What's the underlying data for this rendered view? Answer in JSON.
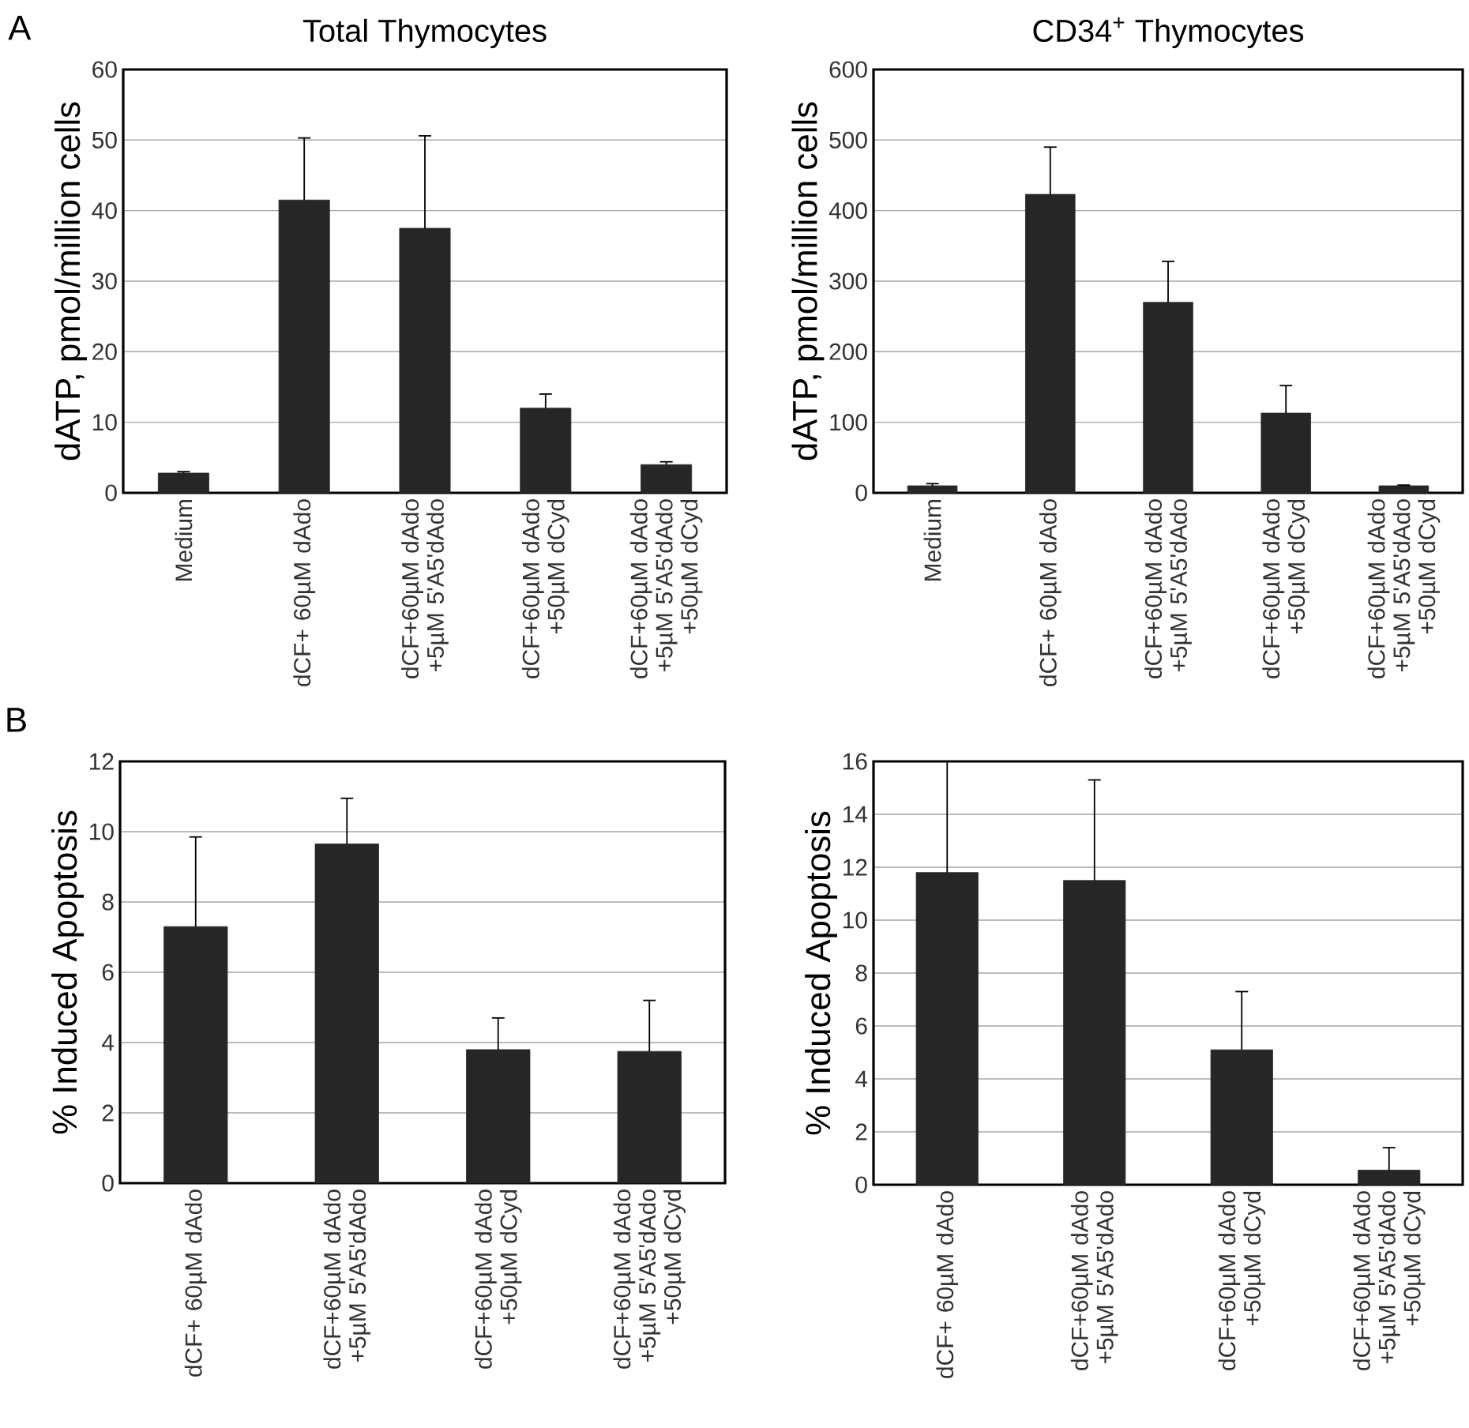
{
  "chart_data": [
    {
      "type": "bar",
      "title": "Total Thymocytes",
      "ylabel": "dATP, pmol/million cells",
      "annotations": [
        "A"
      ],
      "categories": [
        "Medium",
        "dCF+ 60µM dAdo",
        "dCF+60µM dAdo +5µM 5'A5'dAdo",
        "dCF+60µM dAdo +50µM dCyd",
        "dCF+60µM dAdo +5µM 5'A5'dAdo +50µM dCyd"
      ],
      "values": [
        2.8,
        41.5,
        37.5,
        12,
        4
      ],
      "errors": [
        0.2,
        8.8,
        13.1,
        2,
        0.4
      ],
      "color": "#262626",
      "ylim": [
        0,
        60
      ],
      "yticks": [
        0,
        10,
        20,
        30,
        40,
        50,
        60
      ],
      "grid": "y"
    },
    {
      "type": "bar",
      "title": "CD34$^{+}$ Thymocytes",
      "ylabel": "dATP, pmol/million cells",
      "categories": [
        "Medium",
        "dCF+ 60µM dAdo",
        "dCF+60µM dAdo +5µM 5'A5'dAdo",
        "dCF+60µM dAdo +50µM dCyd",
        "dCF+60µM dAdo +5µM 5'A5'dAdo +50µM dCyd"
      ],
      "values": [
        10,
        423,
        270,
        113,
        10
      ],
      "errors": [
        3,
        67,
        58,
        39,
        1
      ],
      "color": "#262626",
      "ylim": [
        0,
        600
      ],
      "yticks": [
        0,
        100,
        200,
        300,
        400,
        500,
        600
      ],
      "grid": "y"
    },
    {
      "type": "bar",
      "ylabel": "% Induced Apoptosis",
      "annotations": [
        "B"
      ],
      "categories": [
        "dCF+ 60µM dAdo",
        "dCF+60µM dAdo +5µM 5'A5'dAdo",
        "dCF+60µM dAdo +50µM dCyd",
        "dCF+60µM dAdo +5µM 5'A5'dAdo +50µM dCyd"
      ],
      "values": [
        7.3,
        9.65,
        3.8,
        3.75
      ],
      "errors": [
        2.55,
        1.3,
        0.9,
        1.45
      ],
      "color": "#262626",
      "ylim": [
        0,
        12
      ],
      "yticks": [
        0,
        2,
        4,
        6,
        8,
        10,
        12
      ],
      "grid": "y"
    },
    {
      "type": "bar",
      "ylabel": "% Induced Apoptosis",
      "categories": [
        "dCF+ 60µM dAdo",
        "dCF+60µM dAdo +5µM 5'A5'dAdo",
        "dCF+60µM dAdo +50µM dCyd",
        "dCF+60µM dAdo +5µM 5'A5'dAdo +50µM dCyd"
      ],
      "values": [
        11.8,
        11.5,
        5.1,
        0.55
      ],
      "errors": [
        4.2,
        3.8,
        2.2,
        0.85
      ],
      "color": "#262626",
      "ylim": [
        0,
        16
      ],
      "yticks": [
        0,
        2,
        4,
        6,
        8,
        10,
        12,
        14,
        16
      ],
      "grid": "y"
    }
  ]
}
